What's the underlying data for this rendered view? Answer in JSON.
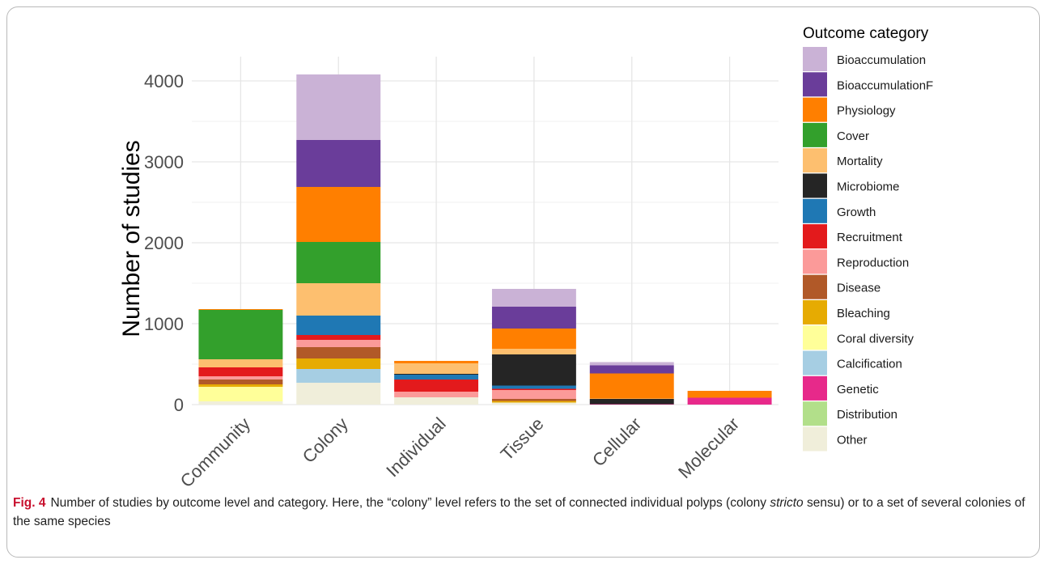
{
  "chart_data": {
    "type": "bar",
    "stacked": true,
    "categories": [
      "Community",
      "Colony",
      "Individual",
      "Tissue",
      "Cellular",
      "Molecular"
    ],
    "ylabel": "Number of studies",
    "xlabel": "",
    "ylim": [
      0,
      4300
    ],
    "yticks": [
      0,
      1000,
      2000,
      3000,
      4000
    ],
    "grid": true,
    "legend_title": "Outcome category",
    "legend_position": "right",
    "series": [
      {
        "name": "Other",
        "color": "#F0EEDA",
        "values": [
          40,
          270,
          90,
          25,
          0,
          0
        ]
      },
      {
        "name": "Distribution",
        "color": "#B2DF8A",
        "values": [
          0,
          0,
          0,
          0,
          0,
          0
        ]
      },
      {
        "name": "Genetic",
        "color": "#E7298A",
        "values": [
          0,
          0,
          0,
          0,
          5,
          85
        ]
      },
      {
        "name": "Calcification",
        "color": "#A6CEE3",
        "values": [
          0,
          170,
          0,
          0,
          0,
          0
        ]
      },
      {
        "name": "Coral diversity",
        "color": "#FFFF99",
        "values": [
          180,
          0,
          0,
          0,
          0,
          0
        ]
      },
      {
        "name": "Bleaching",
        "color": "#E6AB02",
        "values": [
          30,
          130,
          0,
          20,
          0,
          0
        ]
      },
      {
        "name": "Disease",
        "color": "#B15928",
        "values": [
          60,
          140,
          0,
          25,
          0,
          0
        ]
      },
      {
        "name": "Reproduction",
        "color": "#FB9A99",
        "values": [
          40,
          90,
          70,
          110,
          0,
          0
        ]
      },
      {
        "name": "Recruitment",
        "color": "#E31A1C",
        "values": [
          110,
          60,
          150,
          15,
          0,
          0
        ]
      },
      {
        "name": "Growth",
        "color": "#1F78B4",
        "values": [
          0,
          240,
          60,
          40,
          0,
          0
        ]
      },
      {
        "name": "Microbiome",
        "color": "#252525",
        "values": [
          0,
          0,
          10,
          385,
          65,
          0
        ]
      },
      {
        "name": "Mortality",
        "color": "#FDBF6F",
        "values": [
          100,
          400,
          130,
          70,
          5,
          0
        ]
      },
      {
        "name": "Cover",
        "color": "#33A02C",
        "values": [
          610,
          510,
          0,
          0,
          0,
          0
        ]
      },
      {
        "name": "Physiology",
        "color": "#FF7F00",
        "values": [
          10,
          680,
          30,
          250,
          310,
          85
        ]
      },
      {
        "name": "BioaccumulationF",
        "color": "#6A3D9A",
        "values": [
          0,
          580,
          0,
          270,
          100,
          0
        ]
      },
      {
        "name": "Bioaccumulation",
        "color": "#CAB2D6",
        "values": [
          0,
          810,
          0,
          220,
          40,
          0
        ]
      }
    ],
    "legend_order": [
      "Bioaccumulation",
      "BioaccumulationF",
      "Physiology",
      "Cover",
      "Mortality",
      "Microbiome",
      "Growth",
      "Recruitment",
      "Reproduction",
      "Disease",
      "Bleaching",
      "Coral diversity",
      "Calcification",
      "Genetic",
      "Distribution",
      "Other"
    ]
  },
  "caption": {
    "label": "Fig. 4",
    "text_before": "Number of studies by outcome level and category. Here, the “colony” level refers to the set of connected individual polyps (colony ",
    "italic": "stricto",
    "text_after": " sensu) or to a set of several colonies of the same species"
  }
}
